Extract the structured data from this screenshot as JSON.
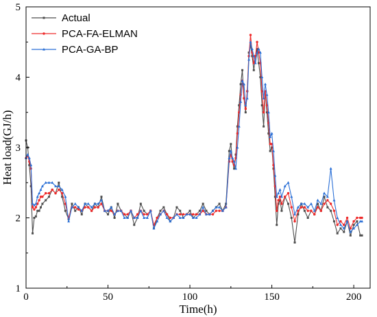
{
  "chart_data": {
    "type": "line",
    "xlabel": "Time(h)",
    "ylabel": "Heat load(GJ/h)",
    "xlim": [
      0,
      210
    ],
    "ylim": [
      1,
      5
    ],
    "xticks": [
      0,
      50,
      100,
      150,
      200
    ],
    "yticks": [
      1,
      2,
      3,
      4,
      5
    ],
    "grid": false,
    "legend_position": "top-left",
    "series": [
      {
        "name": "Actual",
        "color": "#4d4d4d",
        "marker": "square",
        "x": [
          0,
          1,
          2,
          3,
          4,
          5,
          6,
          7,
          8,
          9,
          10,
          12,
          14,
          16,
          18,
          20,
          22,
          24,
          26,
          28,
          30,
          32,
          34,
          36,
          38,
          40,
          42,
          44,
          46,
          48,
          50,
          52,
          54,
          56,
          58,
          60,
          62,
          64,
          66,
          68,
          70,
          72,
          74,
          76,
          78,
          80,
          82,
          84,
          86,
          88,
          90,
          92,
          94,
          96,
          98,
          100,
          102,
          104,
          106,
          108,
          110,
          112,
          114,
          116,
          118,
          120,
          122,
          124,
          125,
          126,
          127,
          128,
          129,
          130,
          131,
          132,
          133,
          134,
          135,
          136,
          137,
          138,
          139,
          140,
          141,
          142,
          143,
          144,
          145,
          146,
          147,
          148,
          149,
          150,
          151,
          152,
          153,
          154,
          155,
          156,
          158,
          160,
          162,
          164,
          166,
          168,
          170,
          172,
          174,
          176,
          178,
          180,
          182,
          184,
          186,
          188,
          190,
          192,
          194,
          196,
          198,
          200,
          202,
          204,
          205
        ],
        "y": [
          3.1,
          3.0,
          2.75,
          2.45,
          1.78,
          2.0,
          2.02,
          2.1,
          2.1,
          2.15,
          2.2,
          2.25,
          2.3,
          2.4,
          2.35,
          2.5,
          2.3,
          2.1,
          1.98,
          2.2,
          2.1,
          2.15,
          2.05,
          2.2,
          2.15,
          2.1,
          2.2,
          2.15,
          2.3,
          2.1,
          2.05,
          2.15,
          2.0,
          2.2,
          2.1,
          2.05,
          2.0,
          2.1,
          1.9,
          2.0,
          2.2,
          2.1,
          2.05,
          2.1,
          1.85,
          2.0,
          2.1,
          2.15,
          2.05,
          1.95,
          2.0,
          2.15,
          2.1,
          2.0,
          2.05,
          2.1,
          2.0,
          2.05,
          2.1,
          2.2,
          2.1,
          2.05,
          2.1,
          2.15,
          2.2,
          2.1,
          2.2,
          2.95,
          3.05,
          2.8,
          2.7,
          2.9,
          3.3,
          3.6,
          3.9,
          4.1,
          3.7,
          3.5,
          3.8,
          4.35,
          4.45,
          4.3,
          4.1,
          4.3,
          4.4,
          4.2,
          4.0,
          3.6,
          3.3,
          3.8,
          3.5,
          3.2,
          2.95,
          3.0,
          2.7,
          2.3,
          1.9,
          2.2,
          2.25,
          2.1,
          2.3,
          2.2,
          2.0,
          1.65,
          2.05,
          2.2,
          2.1,
          2.0,
          2.1,
          2.05,
          2.2,
          2.1,
          2.3,
          2.15,
          2.1,
          1.95,
          1.78,
          1.85,
          1.8,
          1.95,
          1.75,
          1.9,
          1.95,
          1.75,
          1.75
        ]
      },
      {
        "name": "PCA-FA-ELMAN",
        "color": "#ee2a2a",
        "marker": "circle",
        "x": [
          0,
          1,
          2,
          3,
          4,
          5,
          6,
          7,
          8,
          9,
          10,
          12,
          14,
          16,
          18,
          20,
          22,
          24,
          26,
          28,
          30,
          32,
          34,
          36,
          38,
          40,
          42,
          44,
          46,
          48,
          50,
          52,
          54,
          56,
          58,
          60,
          62,
          64,
          66,
          68,
          70,
          72,
          74,
          76,
          78,
          80,
          82,
          84,
          86,
          88,
          90,
          92,
          94,
          96,
          98,
          100,
          102,
          104,
          106,
          108,
          110,
          112,
          114,
          116,
          118,
          120,
          122,
          124,
          125,
          126,
          127,
          128,
          129,
          130,
          131,
          132,
          133,
          134,
          135,
          136,
          137,
          138,
          139,
          140,
          141,
          142,
          143,
          144,
          145,
          146,
          147,
          148,
          149,
          150,
          151,
          152,
          153,
          154,
          155,
          156,
          158,
          160,
          162,
          164,
          166,
          168,
          170,
          172,
          174,
          176,
          178,
          180,
          182,
          184,
          186,
          188,
          190,
          192,
          194,
          196,
          198,
          200,
          202,
          204,
          205
        ],
        "y": [
          2.85,
          2.88,
          2.8,
          2.7,
          2.15,
          2.12,
          2.15,
          2.2,
          2.25,
          2.3,
          2.3,
          2.35,
          2.35,
          2.4,
          2.35,
          2.4,
          2.35,
          2.2,
          2.0,
          2.15,
          2.15,
          2.12,
          2.1,
          2.15,
          2.15,
          2.1,
          2.15,
          2.15,
          2.2,
          2.1,
          2.1,
          2.1,
          2.05,
          2.1,
          2.1,
          2.05,
          2.05,
          2.1,
          2.0,
          2.05,
          2.1,
          2.05,
          2.05,
          2.1,
          1.9,
          2.0,
          2.05,
          2.1,
          2.05,
          2.0,
          2.0,
          2.05,
          2.05,
          2.05,
          2.05,
          2.05,
          2.05,
          2.05,
          2.05,
          2.1,
          2.05,
          2.05,
          2.05,
          2.1,
          2.1,
          2.1,
          2.15,
          2.8,
          2.9,
          2.8,
          2.75,
          2.85,
          3.2,
          3.5,
          3.75,
          3.95,
          3.7,
          3.55,
          3.8,
          4.3,
          4.6,
          4.35,
          4.2,
          4.3,
          4.5,
          4.35,
          4.2,
          3.8,
          3.5,
          3.8,
          3.6,
          3.35,
          3.05,
          3.05,
          2.75,
          2.45,
          2.1,
          2.25,
          2.3,
          2.2,
          2.3,
          2.35,
          2.15,
          1.95,
          2.1,
          2.15,
          2.15,
          2.1,
          2.1,
          2.05,
          2.15,
          2.1,
          2.2,
          2.25,
          2.2,
          2.1,
          1.9,
          1.95,
          1.9,
          2.0,
          1.85,
          1.95,
          2.0,
          2.0,
          2.0
        ]
      },
      {
        "name": "PCA-GA-BP",
        "color": "#2a6fd6",
        "marker": "triangle",
        "x": [
          0,
          1,
          2,
          3,
          4,
          5,
          6,
          7,
          8,
          9,
          10,
          12,
          14,
          16,
          18,
          20,
          22,
          24,
          26,
          28,
          30,
          32,
          34,
          36,
          38,
          40,
          42,
          44,
          46,
          48,
          50,
          52,
          54,
          56,
          58,
          60,
          62,
          64,
          66,
          68,
          70,
          72,
          74,
          76,
          78,
          80,
          82,
          84,
          86,
          88,
          90,
          92,
          94,
          96,
          98,
          100,
          102,
          104,
          106,
          108,
          110,
          112,
          114,
          116,
          118,
          120,
          122,
          124,
          125,
          126,
          127,
          128,
          129,
          130,
          131,
          132,
          133,
          134,
          135,
          136,
          137,
          138,
          139,
          140,
          141,
          142,
          143,
          144,
          145,
          146,
          147,
          148,
          149,
          150,
          151,
          152,
          153,
          154,
          155,
          156,
          158,
          160,
          162,
          164,
          166,
          168,
          170,
          172,
          174,
          176,
          178,
          180,
          182,
          184,
          186,
          188,
          190,
          192,
          194,
          196,
          198,
          200,
          202,
          204,
          205
        ],
        "y": [
          2.85,
          2.9,
          2.85,
          2.75,
          2.2,
          2.18,
          2.2,
          2.3,
          2.35,
          2.4,
          2.45,
          2.5,
          2.5,
          2.5,
          2.45,
          2.45,
          2.4,
          2.3,
          1.95,
          2.15,
          2.2,
          2.15,
          2.1,
          2.2,
          2.2,
          2.15,
          2.2,
          2.2,
          2.25,
          2.1,
          2.1,
          2.15,
          2.05,
          2.1,
          2.1,
          2.0,
          2.0,
          2.1,
          2.0,
          2.0,
          2.1,
          2.0,
          2.0,
          2.1,
          1.85,
          1.95,
          2.05,
          2.1,
          2.0,
          1.95,
          2.0,
          2.05,
          2.0,
          2.0,
          2.05,
          2.05,
          2.0,
          2.0,
          2.05,
          2.15,
          2.05,
          2.05,
          2.1,
          2.15,
          2.15,
          2.1,
          2.15,
          2.85,
          2.95,
          2.85,
          2.8,
          2.7,
          3.0,
          3.3,
          3.65,
          3.95,
          3.9,
          3.6,
          3.7,
          4.25,
          4.5,
          4.4,
          4.3,
          4.2,
          4.35,
          4.4,
          4.35,
          4.0,
          3.7,
          3.9,
          3.75,
          3.5,
          3.15,
          3.2,
          2.95,
          2.6,
          2.3,
          2.35,
          2.4,
          2.3,
          2.45,
          2.5,
          2.3,
          2.05,
          2.15,
          2.2,
          2.2,
          2.15,
          2.2,
          2.1,
          2.25,
          2.2,
          2.35,
          2.3,
          2.7,
          2.25,
          2.0,
          1.9,
          1.85,
          1.95,
          1.8,
          1.85,
          1.9,
          1.95,
          1.95
        ]
      }
    ]
  }
}
